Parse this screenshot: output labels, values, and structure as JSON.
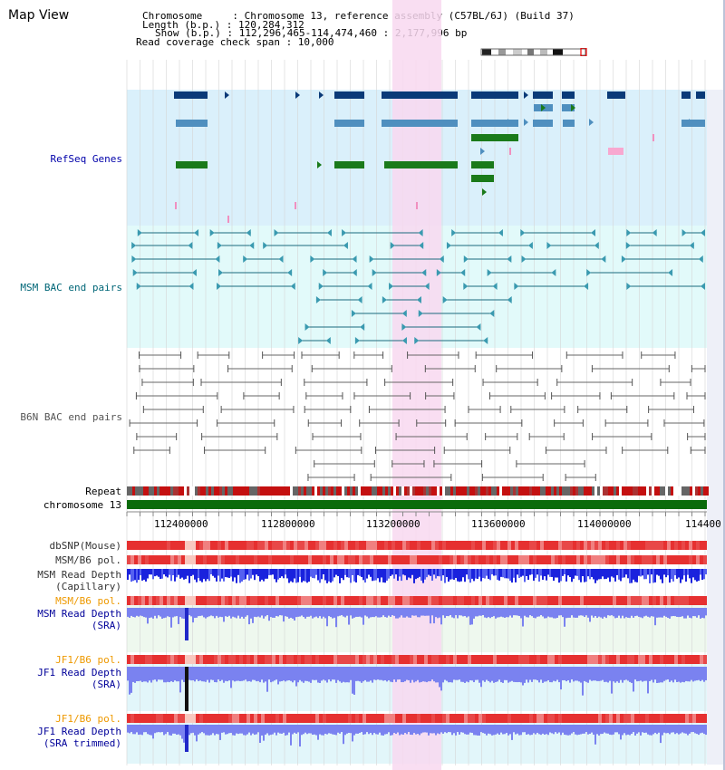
{
  "view_title": "Map View",
  "header": {
    "chromosome_line": "Chromosome     : Chromosome 13, reference assembly (C57BL/6J) (Build 37)",
    "length_line": "Length (b.p.) : 120,284,312",
    "show_line": "Show (b.p.) : 112,296,465-114,474,460 : 2,177,996 bp",
    "coverage_line": "Read coverage check span : 10,000"
  },
  "tracks": {
    "refseq": "RefSeq Genes",
    "msm_bac": "MSM BAC end pairs",
    "b6n_bac": "B6N BAC end pairs",
    "repeat": "Repeat",
    "chromosome": "chromosome 13",
    "dbsnp": "dbSNP(Mouse)",
    "msm_b6_pol_1": "MSM/B6 pol.",
    "msm_depth_cap_1": "MSM Read Depth",
    "msm_depth_cap_2": "(Capillary)",
    "msm_b6_pol_2": "MSM/B6 pol.",
    "msm_depth_sra_1": "MSM Read Depth",
    "msm_depth_sra_2": "(SRA)",
    "jf1_b6_pol_1": "JF1/B6 pol.",
    "jf1_depth_sra_1": "JF1 Read Depth",
    "jf1_depth_sra_2": "(SRA)",
    "jf1_b6_pol_2": "JF1/B6 pol.",
    "jf1_depth_trim_1": "JF1 Read Depth",
    "jf1_depth_trim_2": "(SRA trimmed)"
  },
  "ruler_ticks": [
    "112400000",
    "112800000",
    "113200000",
    "113600000",
    "114000000",
    "114400"
  ],
  "colors": {
    "refseq_label": "#0000aa",
    "msm_label": "#006677",
    "b6n_label": "#555555",
    "orange_label": "#ee9900",
    "blue_label": "#000099",
    "highlight": "#f8d8f0"
  }
}
